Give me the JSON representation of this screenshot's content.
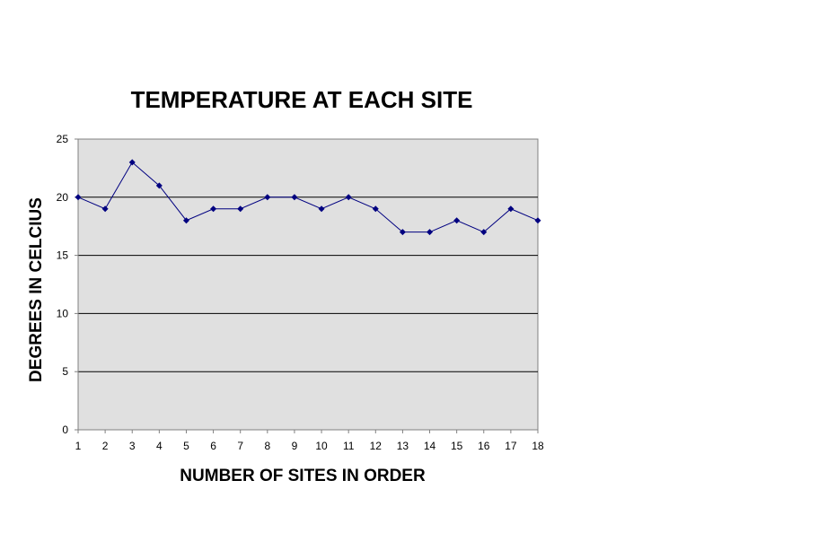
{
  "chart_data": {
    "type": "line",
    "title": "TEMPERATURE AT EACH SITE",
    "xlabel": "NUMBER OF SITES IN ORDER",
    "ylabel": "DEGREES IN CELCIUS",
    "categories": [
      "1",
      "2",
      "3",
      "4",
      "5",
      "6",
      "7",
      "8",
      "9",
      "10",
      "11",
      "12",
      "13",
      "14",
      "15",
      "16",
      "17",
      "18"
    ],
    "series": [
      {
        "values": [
          20,
          19,
          23,
          21,
          18,
          19,
          19,
          20,
          20,
          19,
          20,
          19,
          17,
          17,
          18,
          17,
          19,
          18
        ]
      }
    ],
    "ylim": [
      0,
      25
    ],
    "yticks": [
      "0",
      "5",
      "10",
      "15",
      "20",
      "25"
    ],
    "grid": true,
    "legend": "none",
    "colors": {
      "plot_background": "#e0e0e0",
      "line": "#000080",
      "marker": "#000080",
      "gridline": "#000000",
      "axis": "#808080"
    }
  }
}
